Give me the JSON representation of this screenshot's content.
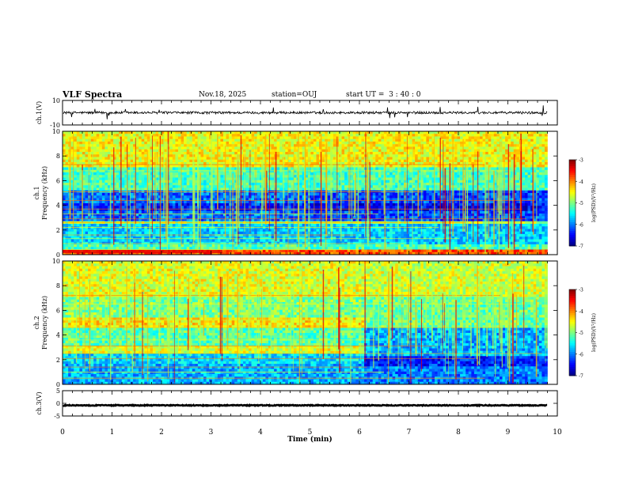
{
  "header": {
    "title": "VLF Spectra",
    "date": "Nov.18, 2025",
    "station": "station=OUJ",
    "start_ut": "start UT =  3 : 40 : 0"
  },
  "chart_data": {
    "type": "heatmap",
    "x_axis": {
      "label": "Time (min)",
      "range": [
        0,
        10
      ],
      "ticks": [
        "0",
        "1",
        "2",
        "3",
        "4",
        "5",
        "6",
        "7",
        "8",
        "9",
        "10"
      ],
      "data_end_min": 9.8
    },
    "panels": [
      {
        "id": "ch1-waveform",
        "type": "line",
        "ylabel": "ch.1(V)",
        "ylim": [
          -10,
          10
        ],
        "y_ticks": [
          "10",
          "-10"
        ],
        "baseline_v": 0,
        "noise_amplitude_v": 2,
        "line_color": "#000000"
      },
      {
        "id": "ch1-spectrogram",
        "type": "heatmap",
        "ylabel_lines": [
          "ch.1",
          "Frequency (kHz)"
        ],
        "ylim": [
          0,
          10
        ],
        "y_ticks": [
          "0",
          "2",
          "4",
          "6",
          "8",
          "10"
        ],
        "colorbar": {
          "label": "log(PSD)(V²/Hz)",
          "range": [
            -7,
            -3
          ],
          "ticks": [
            "-3",
            "-4",
            "-5",
            "-6",
            "-7"
          ]
        },
        "regime_change_min": 4.9
      },
      {
        "id": "ch2-spectrogram",
        "type": "heatmap",
        "ylabel_lines": [
          "ch.2",
          "Frequency (kHz)"
        ],
        "ylim": [
          0,
          10
        ],
        "y_ticks": [
          "0",
          "2",
          "4",
          "6",
          "8",
          "10"
        ],
        "colorbar": {
          "label": "log(PSD)(V²/Hz)",
          "range": [
            -7,
            -3
          ],
          "ticks": [
            "-3",
            "-4",
            "-5",
            "-6",
            "-7"
          ]
        },
        "regime_change_min": 6.05
      },
      {
        "id": "ch3-waveform",
        "type": "line",
        "ylabel": "ch.3(V)",
        "ylim": [
          -5,
          5
        ],
        "y_ticks": [
          "5",
          "0",
          "-5"
        ],
        "baseline_v": -0.8,
        "noise_amplitude_v": 0.35,
        "line_color": "#000000"
      }
    ]
  }
}
